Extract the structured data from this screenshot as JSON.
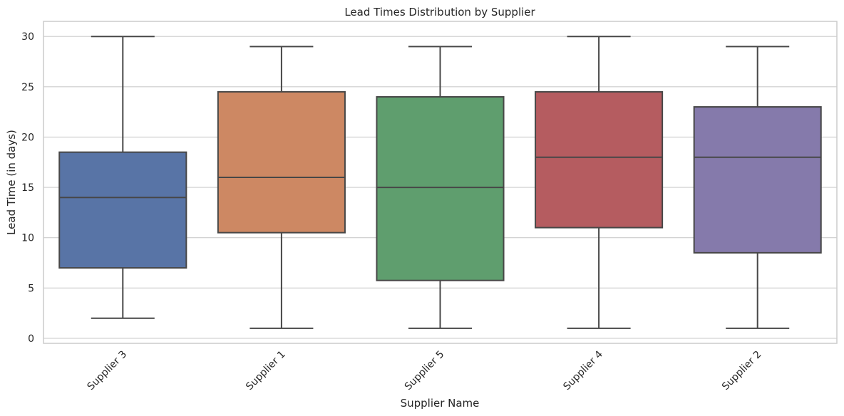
{
  "chart_data": {
    "type": "box",
    "title": "Lead Times Distribution by Supplier",
    "xlabel": "Supplier Name",
    "ylabel": "Lead Time (in days)",
    "ylim": [
      -0.5,
      31.5
    ],
    "yticks": [
      0,
      5,
      10,
      15,
      20,
      25,
      30
    ],
    "grid": true,
    "categories": [
      "Supplier 3",
      "Supplier 1",
      "Supplier 5",
      "Supplier 4",
      "Supplier 2"
    ],
    "series": [
      {
        "category": "Supplier 3",
        "min": 2,
        "q1": 7,
        "median": 14,
        "q3": 18.5,
        "max": 30,
        "color": "#5874a6"
      },
      {
        "category": "Supplier 1",
        "min": 1,
        "q1": 10.5,
        "median": 16,
        "q3": 24.5,
        "max": 29,
        "color": "#cd8863"
      },
      {
        "category": "Supplier 5",
        "min": 1,
        "q1": 5.75,
        "median": 15,
        "q3": 24,
        "max": 29,
        "color": "#5f9e6e"
      },
      {
        "category": "Supplier 4",
        "min": 1,
        "q1": 11,
        "median": 18,
        "q3": 24.5,
        "max": 30,
        "color": "#b55c60"
      },
      {
        "category": "Supplier 2",
        "min": 1,
        "q1": 8.5,
        "median": 18,
        "q3": 23,
        "max": 29,
        "color": "#857aab"
      }
    ]
  }
}
